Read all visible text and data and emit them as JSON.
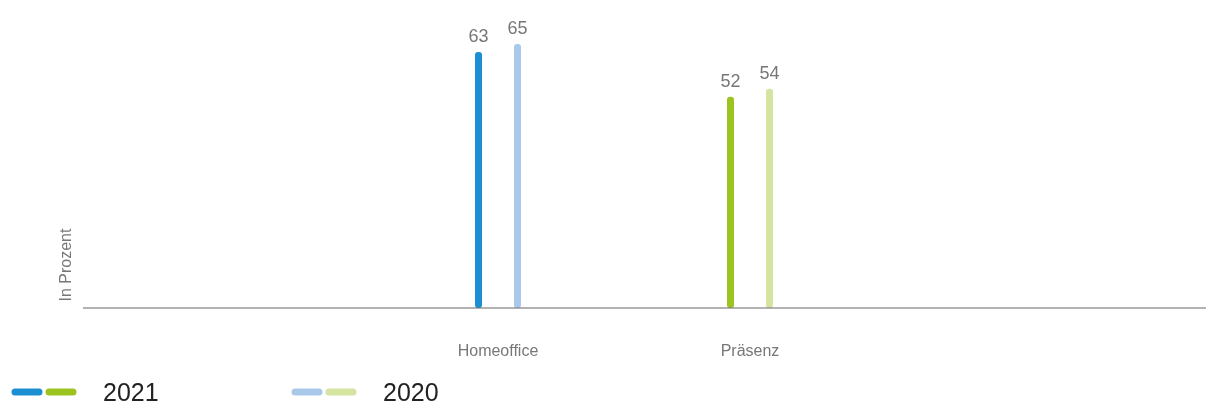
{
  "chart_data": {
    "type": "bar",
    "annotations": [
      "In Prozent"
    ],
    "categories": [
      "Homeoffice",
      "Präsenz"
    ],
    "series": [
      {
        "name": "2021",
        "colors": [
          "#1b8fd2",
          "#9cc31f"
        ],
        "values": [
          63,
          52
        ]
      },
      {
        "name": "2020",
        "colors": [
          "#a9c9eb",
          "#d6e4a1"
        ],
        "values": [
          65,
          54
        ]
      }
    ],
    "data_labels": true,
    "legend": "bottom left"
  }
}
